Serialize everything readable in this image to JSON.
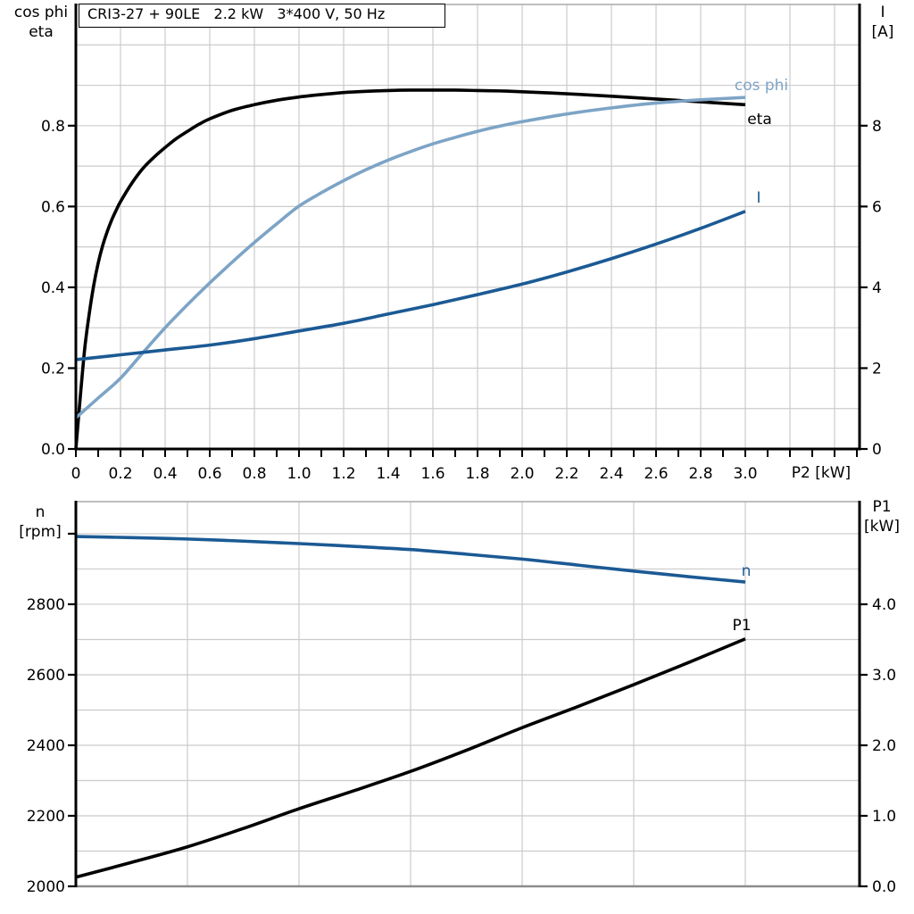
{
  "title_box": {
    "text": "CRI3-27 + 90LE   2.2 kW   3*400 V, 50 Hz"
  },
  "colors": {
    "black": "#000000",
    "dark_blue": "#1b5a94",
    "light_blue": "#7da4c6",
    "grid": "#cbcbcb",
    "border_top": "#a9a9a9",
    "border_gray": "#8c8c8c",
    "background": "#ffffff"
  },
  "chart_data": [
    {
      "type": "line",
      "title": "CRI3-27 + 90LE   2.2 kW   3*400 V, 50 Hz",
      "x_axis": {
        "title": "P2 [kW]",
        "range": [
          0,
          3.512
        ],
        "grid_step": 0.2,
        "grid_max": 3.4,
        "tick_step": 0.1,
        "tick_max": 3.5,
        "labels": [
          {
            "v": 0,
            "t": "0"
          },
          {
            "v": 0.2,
            "t": "0.2"
          },
          {
            "v": 0.4,
            "t": "0.4"
          },
          {
            "v": 0.6,
            "t": "0.6"
          },
          {
            "v": 0.8,
            "t": "0.8"
          },
          {
            "v": 1,
            "t": "1.0"
          },
          {
            "v": 1.2,
            "t": "1.2"
          },
          {
            "v": 1.4,
            "t": "1.4"
          },
          {
            "v": 1.6,
            "t": "1.6"
          },
          {
            "v": 1.8,
            "t": "1.8"
          },
          {
            "v": 2,
            "t": "2.0"
          },
          {
            "v": 2.2,
            "t": "2.2"
          },
          {
            "v": 2.4,
            "t": "2.4"
          },
          {
            "v": 2.6,
            "t": "2.6"
          },
          {
            "v": 2.8,
            "t": "2.8"
          },
          {
            "v": 3,
            "t": "3.0"
          }
        ]
      },
      "left_axis": {
        "title_lines": [
          "cos phi",
          "eta"
        ],
        "range": [
          0,
          1.1
        ],
        "grid_step": 0.1,
        "grid_max": 1.0,
        "ticks": [
          {
            "v": 0,
            "t": "0.0"
          },
          {
            "v": 0.2,
            "t": "0.2"
          },
          {
            "v": 0.4,
            "t": "0.4"
          },
          {
            "v": 0.6,
            "t": "0.6"
          },
          {
            "v": 0.8,
            "t": "0.8"
          }
        ]
      },
      "right_axis": {
        "title_lines": [
          "I",
          "[A]"
        ],
        "range": [
          0,
          11
        ],
        "ticks": [
          {
            "v": 0,
            "t": "0"
          },
          {
            "v": 2,
            "t": "2"
          },
          {
            "v": 4,
            "t": "4"
          },
          {
            "v": 6,
            "t": "6"
          },
          {
            "v": 8,
            "t": "8"
          }
        ]
      },
      "series": [
        {
          "name": "eta",
          "axis": "left",
          "color": "black",
          "width": 3.6,
          "label": {
            "text": "eta",
            "x": 851,
            "y": 133,
            "color": "black"
          },
          "points": [
            [
              0,
              0
            ],
            [
              0.02,
              0.13
            ],
            [
              0.04,
              0.25
            ],
            [
              0.06,
              0.335
            ],
            [
              0.08,
              0.405
            ],
            [
              0.1,
              0.46
            ],
            [
              0.12,
              0.503
            ],
            [
              0.14,
              0.537
            ],
            [
              0.16,
              0.566
            ],
            [
              0.18,
              0.59
            ],
            [
              0.2,
              0.612
            ],
            [
              0.25,
              0.657
            ],
            [
              0.3,
              0.694
            ],
            [
              0.35,
              0.722
            ],
            [
              0.4,
              0.746
            ],
            [
              0.45,
              0.768
            ],
            [
              0.5,
              0.786
            ],
            [
              0.55,
              0.803
            ],
            [
              0.6,
              0.817
            ],
            [
              0.7,
              0.838
            ],
            [
              0.8,
              0.852
            ],
            [
              0.9,
              0.863
            ],
            [
              1.0,
              0.871
            ],
            [
              1.1,
              0.877
            ],
            [
              1.2,
              0.882
            ],
            [
              1.3,
              0.885
            ],
            [
              1.4,
              0.887
            ],
            [
              1.5,
              0.888
            ],
            [
              1.6,
              0.888
            ],
            [
              1.7,
              0.888
            ],
            [
              1.8,
              0.887
            ],
            [
              1.9,
              0.886
            ],
            [
              2.0,
              0.884
            ],
            [
              2.2,
              0.879
            ],
            [
              2.4,
              0.873
            ],
            [
              2.6,
              0.866
            ],
            [
              2.8,
              0.859
            ],
            [
              3.0,
              0.852
            ]
          ]
        },
        {
          "name": "cos_phi",
          "axis": "left",
          "color": "light_blue",
          "width": 3.6,
          "label": {
            "text": "cos phi",
            "x": 853,
            "y": 95,
            "color": "light_blue"
          },
          "points": [
            [
              0,
              0.077
            ],
            [
              0.1,
              0.126
            ],
            [
              0.2,
              0.175
            ],
            [
              0.3,
              0.238
            ],
            [
              0.4,
              0.3
            ],
            [
              0.5,
              0.357
            ],
            [
              0.6,
              0.411
            ],
            [
              0.7,
              0.462
            ],
            [
              0.8,
              0.511
            ],
            [
              0.9,
              0.557
            ],
            [
              1.0,
              0.601
            ],
            [
              1.1,
              0.634
            ],
            [
              1.2,
              0.664
            ],
            [
              1.3,
              0.691
            ],
            [
              1.4,
              0.715
            ],
            [
              1.5,
              0.736
            ],
            [
              1.6,
              0.755
            ],
            [
              1.7,
              0.771
            ],
            [
              1.8,
              0.786
            ],
            [
              1.9,
              0.799
            ],
            [
              2.0,
              0.81
            ],
            [
              2.2,
              0.829
            ],
            [
              2.4,
              0.844
            ],
            [
              2.6,
              0.856
            ],
            [
              2.8,
              0.864
            ],
            [
              3.0,
              0.87
            ]
          ]
        },
        {
          "name": "I",
          "axis": "right",
          "color": "dark_blue",
          "width": 3.6,
          "label": {
            "text": "I",
            "x": 850,
            "y": 221,
            "color": "dark_blue"
          },
          "points": [
            [
              0,
              2.21
            ],
            [
              0.2,
              2.33
            ],
            [
              0.4,
              2.45
            ],
            [
              0.6,
              2.57
            ],
            [
              0.8,
              2.73
            ],
            [
              1.0,
              2.92
            ],
            [
              1.2,
              3.11
            ],
            [
              1.4,
              3.34
            ],
            [
              1.6,
              3.57
            ],
            [
              1.8,
              3.82
            ],
            [
              2.0,
              4.08
            ],
            [
              2.2,
              4.38
            ],
            [
              2.4,
              4.71
            ],
            [
              2.6,
              5.07
            ],
            [
              2.8,
              5.46
            ],
            [
              3.0,
              5.88
            ]
          ]
        }
      ]
    },
    {
      "type": "line",
      "title": "",
      "x_axis": {
        "title": "",
        "range": [
          0,
          3.512
        ],
        "grid_step": 0.5,
        "grid_max": 3.0,
        "tick_step": 0,
        "tick_max": 0,
        "labels": []
      },
      "left_axis": {
        "title_lines": [
          "n",
          "[rpm]"
        ],
        "range": [
          2000,
          3091
        ],
        "grid_step": 100,
        "grid_max": 3000,
        "ticks": [
          {
            "v": 2000,
            "t": "2000"
          },
          {
            "v": 2200,
            "t": "2200"
          },
          {
            "v": 2400,
            "t": "2400"
          },
          {
            "v": 2600,
            "t": "2600"
          },
          {
            "v": 2800,
            "t": "2800"
          },
          {
            "v": 3000,
            "t": ""
          }
        ]
      },
      "right_axis": {
        "title_lines": [
          "P1",
          "[kW]"
        ],
        "range": [
          0,
          5.456
        ],
        "ticks": [
          {
            "v": 0,
            "t": "0.0"
          },
          {
            "v": 1,
            "t": "1.0"
          },
          {
            "v": 2,
            "t": "2.0"
          },
          {
            "v": 3,
            "t": "3.0"
          },
          {
            "v": 4,
            "t": "4.0"
          }
        ]
      },
      "series": [
        {
          "name": "n",
          "axis": "left",
          "color": "dark_blue",
          "width": 3.6,
          "label": {
            "text": "n",
            "x": 836,
            "y": 639,
            "color": "dark_blue"
          },
          "points": [
            [
              0,
              2992
            ],
            [
              0.25,
              2989
            ],
            [
              0.5,
              2985
            ],
            [
              0.75,
              2979
            ],
            [
              1.0,
              2972
            ],
            [
              1.25,
              2964
            ],
            [
              1.5,
              2955
            ],
            [
              1.75,
              2942
            ],
            [
              2.0,
              2928
            ],
            [
              2.25,
              2911
            ],
            [
              2.5,
              2894
            ],
            [
              2.75,
              2878
            ],
            [
              3.0,
              2863
            ]
          ]
        },
        {
          "name": "P1",
          "axis": "right",
          "color": "black",
          "width": 3.6,
          "label": {
            "text": "P1",
            "x": 831,
            "y": 700,
            "color": "black"
          },
          "points": [
            [
              0,
              0.13
            ],
            [
              0.25,
              0.34
            ],
            [
              0.5,
              0.56
            ],
            [
              0.75,
              0.82
            ],
            [
              1.0,
              1.1
            ],
            [
              1.25,
              1.36
            ],
            [
              1.5,
              1.63
            ],
            [
              1.75,
              1.93
            ],
            [
              2.0,
              2.25
            ],
            [
              2.25,
              2.55
            ],
            [
              2.5,
              2.86
            ],
            [
              2.75,
              3.18
            ],
            [
              3.0,
              3.51
            ]
          ]
        }
      ]
    }
  ]
}
